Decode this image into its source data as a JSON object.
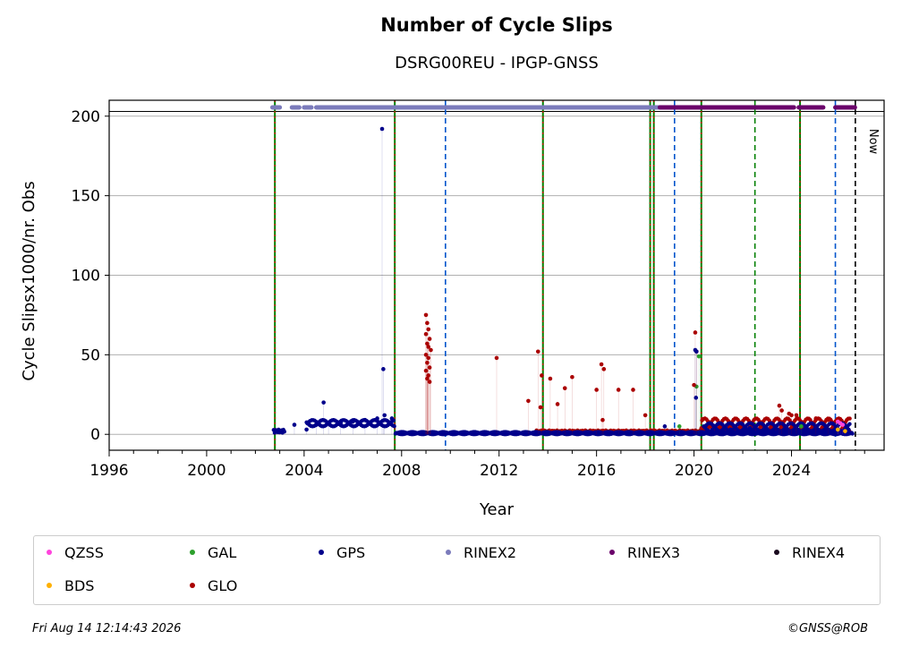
{
  "chart_data": {
    "type": "scatter",
    "title": "Number of Cycle Slips",
    "subtitle": "DSRG00REU - IPGP-GNSS",
    "xlabel": "Year",
    "ylabel": "Cycle Slipsx1000/nr. Obs",
    "xlim": [
      1996,
      2027.8
    ],
    "ylim": [
      -10,
      210
    ],
    "xticks": [
      1996,
      2000,
      2004,
      2008,
      2012,
      2016,
      2020,
      2024
    ],
    "yticks": [
      0,
      50,
      100,
      150,
      200
    ],
    "grid": "horizontal",
    "legend_position": "bottom",
    "now_label": "Now",
    "now_x": 2026.62,
    "vlines_solid_green_red": [
      2002.8,
      2007.72,
      2013.8,
      2018.2,
      2018.35,
      2020.3,
      2024.35
    ],
    "vlines_dashed_blue": [
      2009.8,
      2019.2,
      2025.8
    ],
    "vlines_dashed_green": [
      2022.5
    ],
    "rinex_bands": [
      {
        "name": "RINEX2",
        "from": 2002.7,
        "to": 2003.0
      },
      {
        "name": "RINEX2",
        "from": 2003.5,
        "to": 2003.8
      },
      {
        "name": "RINEX2",
        "from": 2004.0,
        "to": 2004.3
      },
      {
        "name": "RINEX2",
        "from": 2004.5,
        "to": 2018.6
      },
      {
        "name": "RINEX3",
        "from": 2018.6,
        "to": 2024.1
      },
      {
        "name": "RINEX3",
        "from": 2024.3,
        "to": 2025.3
      },
      {
        "name": "RINEX3",
        "from": 2025.8,
        "to": 2026.6
      }
    ],
    "series": [
      {
        "name": "QZSS",
        "color": "#ff44dd",
        "points": [
          [
            2025.9,
            8
          ],
          [
            2026.0,
            7
          ],
          [
            2026.1,
            6
          ]
        ]
      },
      {
        "name": "BDS",
        "color": "#ffb000",
        "points": [
          [
            2025.9,
            3
          ],
          [
            2026.2,
            2
          ]
        ]
      },
      {
        "name": "GAL",
        "color": "#2ca02c",
        "points": [
          [
            2019.4,
            5
          ],
          [
            2020.2,
            49
          ],
          [
            2020.1,
            30
          ],
          [
            2024.4,
            5
          ]
        ]
      },
      {
        "name": "GLO",
        "color": "#aa0000",
        "points": [
          [
            2009.0,
            75
          ],
          [
            2009.05,
            70
          ],
          [
            2009.1,
            66
          ],
          [
            2009.0,
            63
          ],
          [
            2009.15,
            60
          ],
          [
            2009.05,
            57
          ],
          [
            2009.1,
            55
          ],
          [
            2009.2,
            53
          ],
          [
            2009.0,
            50
          ],
          [
            2009.1,
            48
          ],
          [
            2009.05,
            45
          ],
          [
            2009.15,
            42
          ],
          [
            2009.0,
            40
          ],
          [
            2009.1,
            37
          ],
          [
            2009.05,
            35
          ],
          [
            2009.15,
            33
          ],
          [
            2011.9,
            48
          ],
          [
            2013.2,
            21
          ],
          [
            2013.6,
            52
          ],
          [
            2013.7,
            17
          ],
          [
            2013.75,
            37
          ],
          [
            2014.1,
            35
          ],
          [
            2014.4,
            19
          ],
          [
            2014.7,
            29
          ],
          [
            2015.0,
            36
          ],
          [
            2016.0,
            28
          ],
          [
            2016.2,
            44
          ],
          [
            2016.3,
            41
          ],
          [
            2016.25,
            9
          ],
          [
            2016.9,
            28
          ],
          [
            2017.5,
            28
          ],
          [
            2018.0,
            12
          ],
          [
            2020.05,
            64
          ],
          [
            2020.1,
            52
          ],
          [
            2020.0,
            31
          ],
          [
            2023.5,
            18
          ],
          [
            2023.6,
            15
          ],
          [
            2023.9,
            13
          ],
          [
            2024.0,
            12
          ],
          [
            2024.2,
            12
          ],
          [
            2025.0,
            10
          ],
          [
            2025.5,
            9
          ]
        ]
      },
      {
        "name": "GPS",
        "color": "#00008b",
        "points": [
          [
            2007.2,
            192
          ],
          [
            2007.25,
            41
          ],
          [
            2004.8,
            20
          ],
          [
            2020.05,
            53
          ],
          [
            2020.1,
            52
          ],
          [
            2020.08,
            23
          ],
          [
            2003.6,
            6
          ],
          [
            2004.1,
            3
          ],
          [
            2004.5,
            6
          ],
          [
            2005.0,
            7
          ],
          [
            2005.5,
            7
          ],
          [
            2006.0,
            8
          ],
          [
            2006.5,
            9
          ],
          [
            2007.0,
            10
          ],
          [
            2007.3,
            12
          ],
          [
            2007.6,
            10
          ],
          [
            2018.8,
            5
          ],
          [
            2021.5,
            3
          ],
          [
            2022.3,
            4
          ],
          [
            2024.6,
            4
          ]
        ]
      },
      {
        "name": "RINEX2",
        "color": "#7b7bbb",
        "points": []
      },
      {
        "name": "RINEX3",
        "color": "#6a006a",
        "points": []
      },
      {
        "name": "RINEX4",
        "color": "#1a0a1e",
        "points": []
      }
    ]
  },
  "footer": {
    "timestamp": "Fri Aug 14 12:14:43 2026",
    "credit": "©GNSS@ROB"
  }
}
